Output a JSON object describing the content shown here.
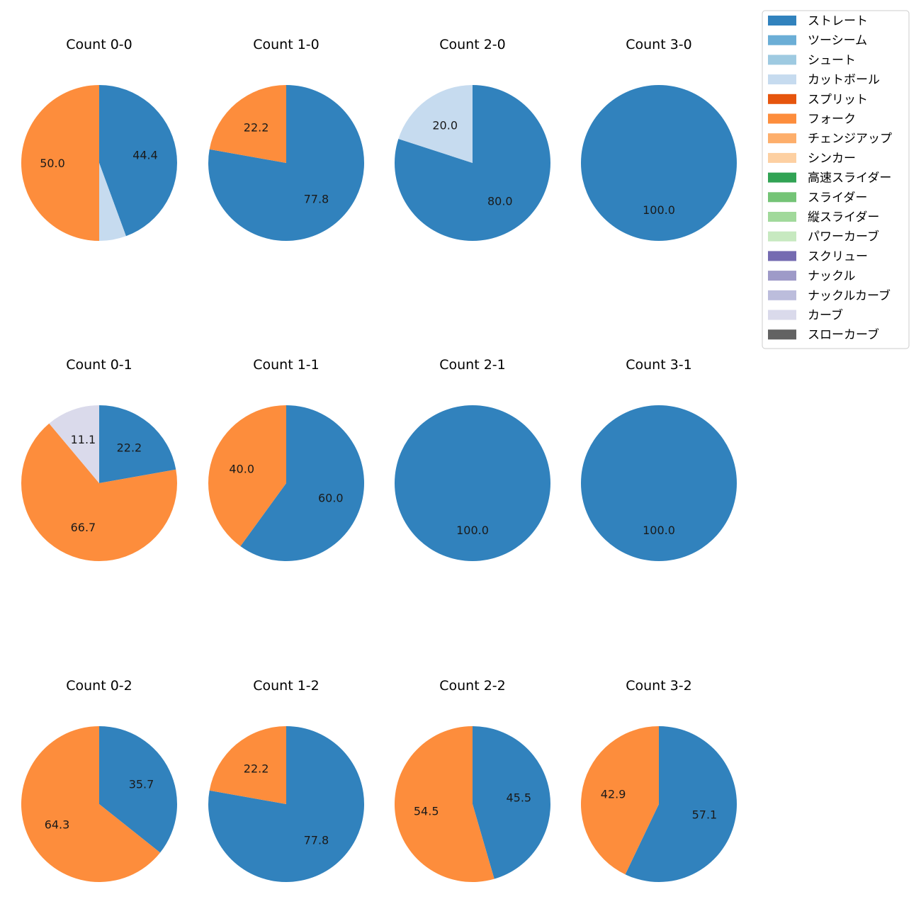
{
  "chart_data": {
    "type": "pie",
    "legend": {
      "placement": "top-right",
      "entries": [
        {
          "name": "ストレート",
          "color": "#3182bd"
        },
        {
          "name": "ツーシーム",
          "color": "#6baed6"
        },
        {
          "name": "シュート",
          "color": "#9ecae1"
        },
        {
          "name": "カットボール",
          "color": "#c6dbef"
        },
        {
          "name": "スプリット",
          "color": "#e6550d"
        },
        {
          "name": "フォーク",
          "color": "#fd8d3c"
        },
        {
          "name": "チェンジアップ",
          "color": "#fdae6b"
        },
        {
          "name": "シンカー",
          "color": "#fdd0a2"
        },
        {
          "name": "高速スライダー",
          "color": "#31a354"
        },
        {
          "name": "スライダー",
          "color": "#74c476"
        },
        {
          "name": "縦スライダー",
          "color": "#a1d99b"
        },
        {
          "name": "パワーカーブ",
          "color": "#c7e9c0"
        },
        {
          "name": "スクリュー",
          "color": "#756bb1"
        },
        {
          "name": "ナックル",
          "color": "#9e9ac8"
        },
        {
          "name": "ナックルカーブ",
          "color": "#bcbddc"
        },
        {
          "name": "カーブ",
          "color": "#dadaeb"
        },
        {
          "name": "スローカーブ",
          "color": "#636363"
        }
      ]
    },
    "charts": [
      {
        "title": "Count 0-0",
        "slices": [
          {
            "pitch": "ストレート",
            "value": 44.4,
            "label": "44.4"
          },
          {
            "pitch": "カットボール",
            "value": 5.6,
            "label": ""
          },
          {
            "pitch": "フォーク",
            "value": 50.0,
            "label": "50.0"
          }
        ]
      },
      {
        "title": "Count 1-0",
        "slices": [
          {
            "pitch": "ストレート",
            "value": 77.8,
            "label": "77.8"
          },
          {
            "pitch": "フォーク",
            "value": 22.2,
            "label": "22.2"
          }
        ]
      },
      {
        "title": "Count 2-0",
        "slices": [
          {
            "pitch": "ストレート",
            "value": 80.0,
            "label": "80.0"
          },
          {
            "pitch": "カットボール",
            "value": 20.0,
            "label": "20.0"
          }
        ]
      },
      {
        "title": "Count 3-0",
        "slices": [
          {
            "pitch": "ストレート",
            "value": 100.0,
            "label": "100.0"
          }
        ]
      },
      {
        "title": "Count 0-1",
        "slices": [
          {
            "pitch": "ストレート",
            "value": 22.2,
            "label": "22.2"
          },
          {
            "pitch": "フォーク",
            "value": 66.7,
            "label": "66.7"
          },
          {
            "pitch": "カーブ",
            "value": 11.1,
            "label": "11.1"
          }
        ]
      },
      {
        "title": "Count 1-1",
        "slices": [
          {
            "pitch": "ストレート",
            "value": 60.0,
            "label": "60.0"
          },
          {
            "pitch": "フォーク",
            "value": 40.0,
            "label": "40.0"
          }
        ]
      },
      {
        "title": "Count 2-1",
        "slices": [
          {
            "pitch": "ストレート",
            "value": 100.0,
            "label": "100.0"
          }
        ]
      },
      {
        "title": "Count 3-1",
        "slices": [
          {
            "pitch": "ストレート",
            "value": 100.0,
            "label": "100.0"
          }
        ]
      },
      {
        "title": "Count 0-2",
        "slices": [
          {
            "pitch": "ストレート",
            "value": 35.7,
            "label": "35.7"
          },
          {
            "pitch": "フォーク",
            "value": 64.3,
            "label": "64.3"
          }
        ]
      },
      {
        "title": "Count 1-2",
        "slices": [
          {
            "pitch": "ストレート",
            "value": 77.8,
            "label": "77.8"
          },
          {
            "pitch": "フォーク",
            "value": 22.2,
            "label": "22.2"
          }
        ]
      },
      {
        "title": "Count 2-2",
        "slices": [
          {
            "pitch": "ストレート",
            "value": 45.5,
            "label": "45.5"
          },
          {
            "pitch": "フォーク",
            "value": 54.5,
            "label": "54.5"
          }
        ]
      },
      {
        "title": "Count 3-2",
        "slices": [
          {
            "pitch": "ストレート",
            "value": 57.1,
            "label": "57.1"
          },
          {
            "pitch": "フォーク",
            "value": 42.9,
            "label": "42.9"
          }
        ]
      }
    ]
  }
}
